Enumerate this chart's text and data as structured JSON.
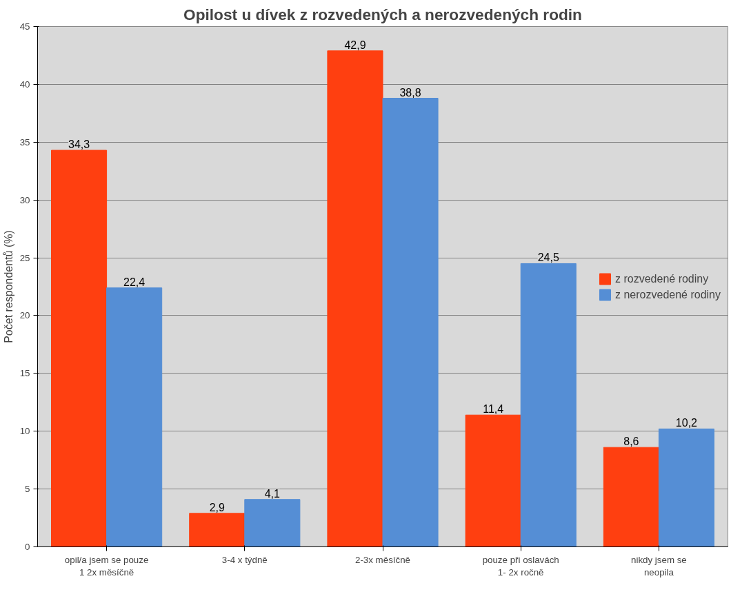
{
  "chart_data": {
    "type": "bar",
    "title": "Opilost u dívek z rozvedených a nerozvedených rodin",
    "ylabel": "Počet respondentů (%)",
    "categories": [
      "opil/a jsem se pouze 1 2x měsíčně",
      "3-4 x týdně",
      "2-3x měsíčně",
      "pouze při oslavách 1- 2x ročně",
      "nikdy jsem se neopila"
    ],
    "series": [
      {
        "name": "z rozvedené rodiny",
        "color": "#ff3f10",
        "values": [
          34.3,
          2.9,
          42.9,
          11.4,
          8.6
        ],
        "value_labels": [
          "34,3",
          "2,9",
          "42,9",
          "11,4",
          "8,6"
        ]
      },
      {
        "name": "z nerozvedené rodiny",
        "color": "#558ed5",
        "values": [
          22.4,
          4.1,
          38.8,
          24.5,
          10.2
        ],
        "value_labels": [
          "22,4",
          "4,1",
          "38,8",
          "24,5",
          "10,2"
        ]
      }
    ],
    "ylim": [
      0,
      45
    ],
    "yticks": [
      0,
      5,
      10,
      15,
      20,
      25,
      30,
      35,
      40,
      45
    ],
    "grid": "y",
    "legend": "right"
  }
}
